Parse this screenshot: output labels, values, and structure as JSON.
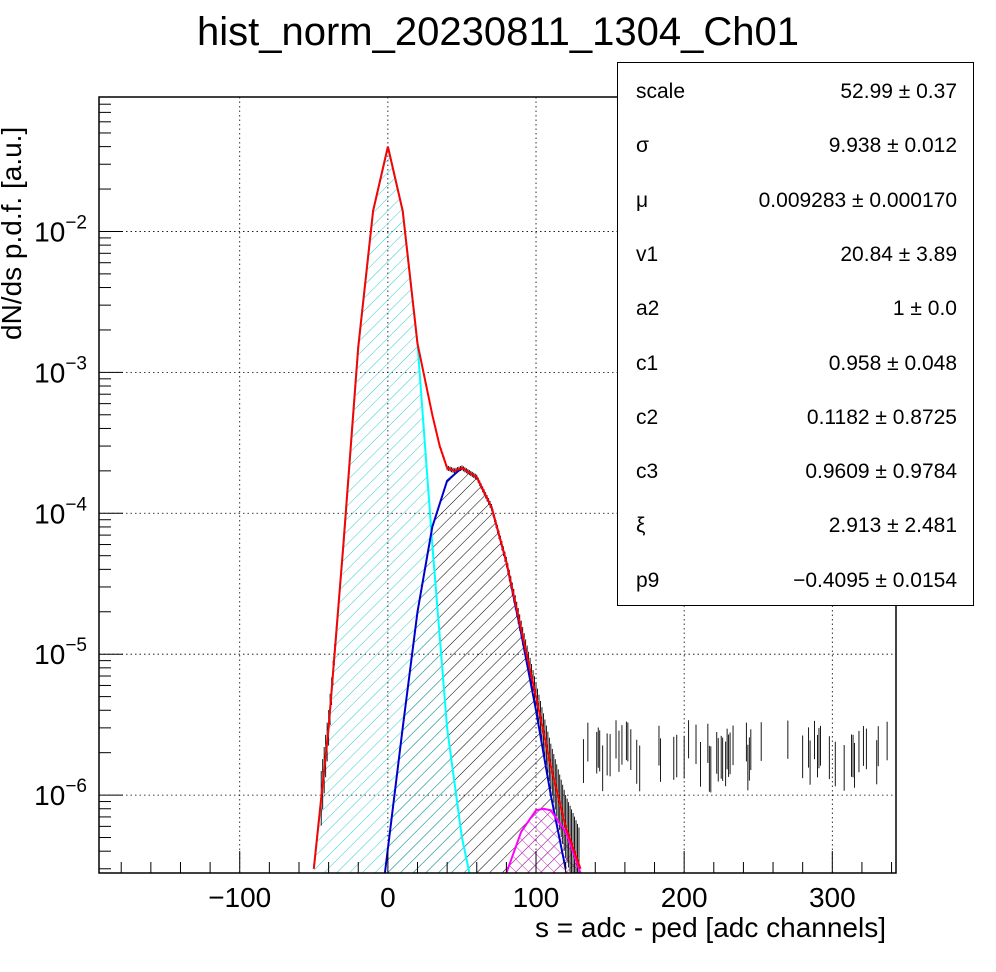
{
  "chart_data": {
    "type": "line",
    "title": "hist_norm_20230811_1304_Ch01",
    "xlabel": "s = adc - ped [adc channels]",
    "ylabel": "dN/ds p.d.f. [a.u.]",
    "xlim": [
      -195,
      343
    ],
    "ylim": [
      2.8e-07,
      0.09
    ],
    "yscale": "log",
    "grid": true,
    "x_ticks": [
      -100,
      0,
      100,
      200,
      300
    ],
    "x_tick_labels": [
      "−100",
      "0",
      "100",
      "200",
      "300"
    ],
    "y_ticks": [
      1e-06,
      1e-05,
      0.0001,
      0.001,
      0.01
    ],
    "y_tick_labels": [
      {
        "base": "10",
        "exp": "−6"
      },
      {
        "base": "10",
        "exp": "−5"
      },
      {
        "base": "10",
        "exp": "−4"
      },
      {
        "base": "10",
        "exp": "−3"
      },
      {
        "base": "10",
        "exp": "−2"
      }
    ],
    "series": [
      {
        "color": "#ff0000",
        "x": [
          -50,
          -40,
          -30,
          -20,
          -10,
          0,
          10,
          20,
          30,
          35,
          40,
          45,
          50,
          60,
          70,
          80,
          90,
          100,
          110,
          120,
          130
        ],
        "y": [
          3e-07,
          3e-06,
          6e-05,
          0.0015,
          0.014,
          0.04,
          0.014,
          0.0016,
          0.0005,
          0.0003,
          0.00021,
          0.0002,
          0.00021,
          0.00018,
          0.00011,
          4.5e-05,
          1.5e-05,
          5e-06,
          1.6e-06,
          6e-07,
          3e-07
        ]
      },
      {
        "color": "#00ffff",
        "x": [
          -50,
          -40,
          -30,
          -20,
          -10,
          0,
          10,
          20,
          30,
          40,
          50,
          55
        ],
        "y": [
          3e-07,
          3e-06,
          6e-05,
          0.0015,
          0.014,
          0.04,
          0.014,
          0.0016,
          6e-05,
          3e-06,
          5e-07,
          2.8e-07
        ]
      },
      {
        "color": "#0000cc",
        "x": [
          -2,
          10,
          20,
          30,
          40,
          50,
          60,
          70,
          80,
          90,
          100,
          110,
          120
        ],
        "y": [
          2.8e-07,
          3e-06,
          2e-05,
          8e-05,
          0.00017,
          0.00021,
          0.00018,
          0.00011,
          4.5e-05,
          1.4e-05,
          4e-06,
          1e-06,
          3e-07
        ]
      },
      {
        "color": "#ff00ff",
        "x": [
          80,
          90,
          100,
          105,
          110,
          120,
          130
        ],
        "y": [
          2.8e-07,
          5.5e-07,
          7.8e-07,
          8e-07,
          7.8e-07,
          5.5e-07,
          2.8e-07
        ]
      }
    ],
    "stats": [
      {
        "name": "scale",
        "value": "52.99 ± 0.37"
      },
      {
        "name": "σ",
        "value": "9.938 ± 0.012"
      },
      {
        "name": "μ",
        "value": "0.009283 ± 0.000170"
      },
      {
        "name": "v1",
        "value": "20.84 ± 3.89"
      },
      {
        "name": "a2",
        "value": "1 ± 0.0"
      },
      {
        "name": "c1",
        "value": "0.958 ± 0.048"
      },
      {
        "name": "c2",
        "value": "0.1182 ± 0.8725"
      },
      {
        "name": "c3",
        "value": "0.9609 ± 0.9784"
      },
      {
        "name": "ξ",
        "value": "2.913 ± 2.481"
      },
      {
        "name": "p9",
        "value": "−0.4095 ± 0.0154"
      }
    ]
  }
}
